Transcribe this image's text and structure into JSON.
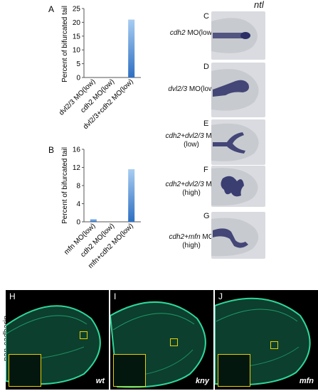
{
  "header": {
    "gene": "ntl"
  },
  "chart_data": [
    {
      "type": "bar",
      "panel": "A",
      "categories": [
        "dvl2/3 MO(low)",
        "cdh2 MO(low)",
        "dvl2/3+cdh2 MO(low)"
      ],
      "values": [
        0,
        0,
        21
      ],
      "ylabel": "Percent of bifurcated tail",
      "xlabel": "",
      "ylim": [
        0,
        25
      ],
      "yticks": [
        "0",
        "5",
        "10",
        "15",
        "20",
        "25"
      ],
      "grid": false
    },
    {
      "type": "bar",
      "panel": "B",
      "categories": [
        "mfn MO(low)",
        "cdh2 MO(low)",
        "mfn+cdh2 MO(low)"
      ],
      "values": [
        0.6,
        0,
        11.6
      ],
      "ylabel": "Percent of bifurcated tail",
      "xlabel": "",
      "ylim": [
        0,
        16
      ],
      "yticks": [
        "0",
        "4",
        "8",
        "12",
        "16"
      ],
      "grid": false
    }
  ],
  "image_panels": [
    {
      "letter": "C",
      "label_gene": "cdh2",
      "label_rest": " MO(low)",
      "label_line2": ""
    },
    {
      "letter": "D",
      "label_gene": "dvl2/3",
      "label_rest": " MO(low)",
      "label_line2": ""
    },
    {
      "letter": "E",
      "label_gene": "cdh2+dvl2/3",
      "label_rest": " MO",
      "label_line2": "(low)"
    },
    {
      "letter": "F",
      "label_gene": "cdh2+dvl2/3",
      "label_rest": " MO",
      "label_line2": "(high)"
    },
    {
      "letter": "G",
      "label_gene": "cdh2+mfn",
      "label_rest": " MO",
      "label_line2": "(high)"
    }
  ],
  "bottom": {
    "side_label": "pan-cadherin",
    "panels": [
      {
        "letter": "H",
        "genotype": "wt"
      },
      {
        "letter": "I",
        "genotype": "kny"
      },
      {
        "letter": "J",
        "genotype": "mfn"
      }
    ]
  },
  "colors": {
    "bar_top": "#a8cdf2",
    "bar_bottom": "#2e6fc2",
    "staining": "#2b2f66",
    "embryo_bg": "#d9dbe0",
    "cadherin": "#2fd69a",
    "inset_border": "#e6d000"
  }
}
